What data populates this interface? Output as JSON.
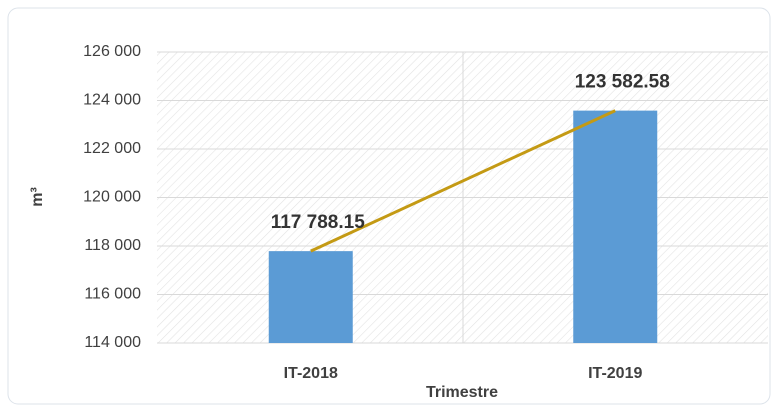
{
  "chart_data": {
    "type": "bar",
    "x_label": "Trimestre",
    "y_label": "m³",
    "categories": [
      "IT-2018",
      "IT-2019"
    ],
    "values": [
      117788.15,
      123582.58
    ],
    "value_labels": [
      "117 788.15",
      "123 582.58"
    ],
    "color": "#5b9bd5",
    "trend_line": true,
    "line_color": "#c49a14",
    "ylim": [
      114000,
      126000
    ],
    "yticks": [
      {
        "value": 114000,
        "label": "114 000"
      },
      {
        "value": 116000,
        "label": "116 000"
      },
      {
        "value": 118000,
        "label": "118 000"
      },
      {
        "value": 120000,
        "label": "120 000"
      },
      {
        "value": 122000,
        "label": "122 000"
      },
      {
        "value": 124000,
        "label": "124 000"
      },
      {
        "value": 126000,
        "label": "126 000"
      }
    ],
    "grid": true
  }
}
